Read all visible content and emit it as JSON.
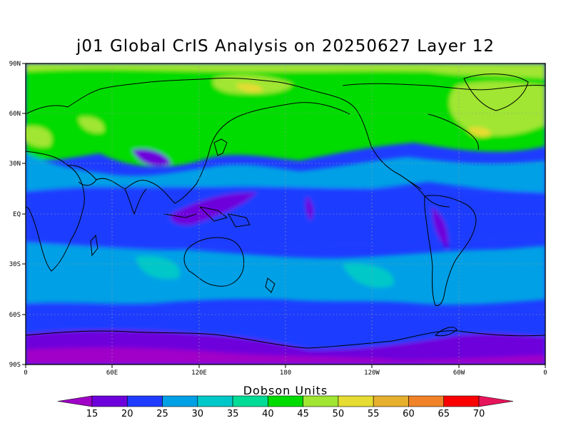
{
  "title": "j01 Global CrIS Analysis on 20250627 Layer 12",
  "lat_labels": [
    "90N",
    "60N",
    "30N",
    "EQ",
    "30S",
    "60S",
    "90S"
  ],
  "lon_labels": [
    "0",
    "60E",
    "120E",
    "180",
    "120W",
    "60W",
    "0"
  ],
  "colorbar": {
    "title": "Dobson Units",
    "tick_labels": [
      "15",
      "20",
      "25",
      "30",
      "35",
      "40",
      "45",
      "50",
      "55",
      "60",
      "65",
      "70"
    ],
    "colors": [
      "#a000c8",
      "#6e00dc",
      "#1e3cff",
      "#00a0e6",
      "#00c8c8",
      "#00dc96",
      "#00dc00",
      "#a0e632",
      "#e6dc32",
      "#e6af2d",
      "#f08228",
      "#fa0000",
      "#e6145a"
    ]
  }
}
